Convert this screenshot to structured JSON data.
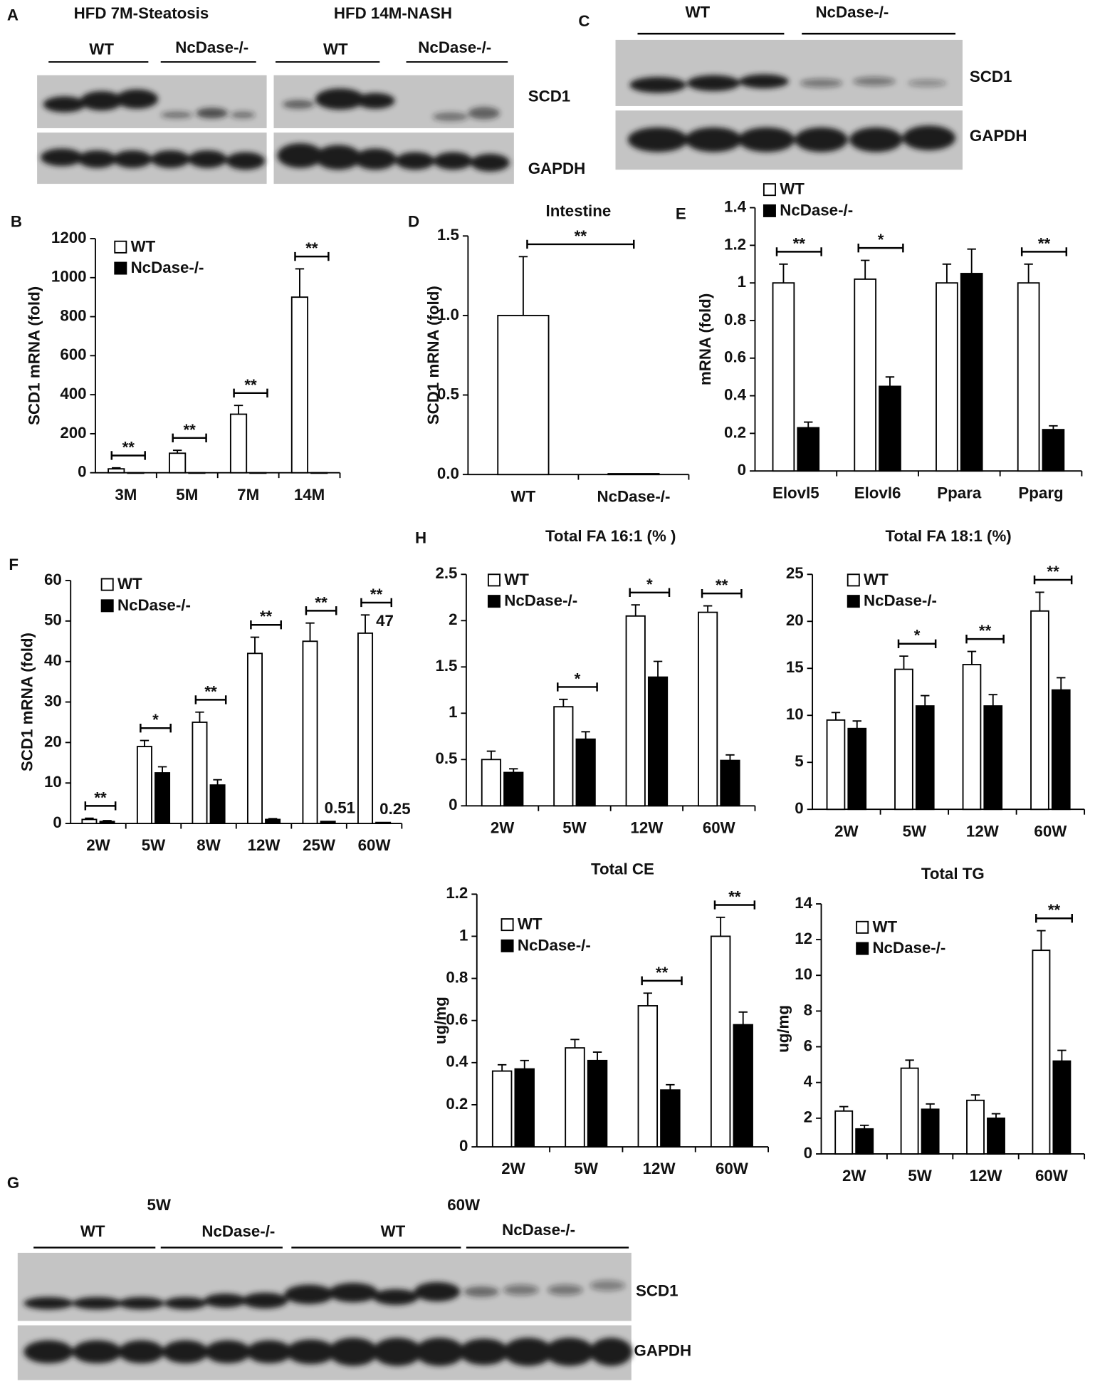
{
  "blot_panels": [
    {
      "panel": "A",
      "groups": [
        "HFD 7M-Steatosis",
        "HFD 14M-NASH"
      ],
      "lanes": [
        "WT",
        "NcDase-/-",
        "WT",
        "NcDase-/-"
      ],
      "bands": [
        "SCD1",
        "GAPDH"
      ]
    },
    {
      "panel": "C",
      "lanes": [
        "WT",
        "NcDase-/-"
      ],
      "bands": [
        "SCD1",
        "GAPDH"
      ]
    },
    {
      "panel": "G",
      "groups": [
        "5W",
        "60W"
      ],
      "lanes": [
        "WT",
        "NcDase-/-",
        "WT",
        "NcDase-/-"
      ],
      "bands": [
        "SCD1",
        "GAPDH"
      ]
    }
  ],
  "chart_data": [
    {
      "type": "bar",
      "panel": "B",
      "ylabel": "SCD1 mRNA (fold)",
      "categories": [
        "3M",
        "5M",
        "7M",
        "14M"
      ],
      "series": [
        {
          "name": "WT",
          "color": "#ffffff",
          "values": [
            20,
            100,
            300,
            900
          ],
          "errors": [
            5,
            15,
            45,
            145
          ]
        },
        {
          "name": "NcDase-/-",
          "color": "#000000",
          "values": [
            0,
            0,
            0,
            0
          ],
          "errors": [
            0,
            0,
            0,
            0
          ]
        }
      ],
      "significance": [
        "**",
        "**",
        "**",
        "**"
      ],
      "ylim": [
        0,
        1200
      ],
      "yticks": [
        0,
        200,
        400,
        600,
        800,
        1000,
        1200
      ],
      "legend": true
    },
    {
      "type": "bar",
      "panel": "D",
      "title": "Intestine",
      "ylabel": "SCD1 mRNA (fold)",
      "categories": [
        "WT",
        "NcDase-/-"
      ],
      "series": [
        {
          "color": "#ffffff",
          "values": [
            1.0,
            0.005
          ],
          "errors": [
            0.37,
            0
          ]
        }
      ],
      "significance": [
        "**",
        null
      ],
      "ylim": [
        0,
        1.5
      ],
      "yticks": [
        {
          "value": 0,
          "label": "0.0"
        },
        0.5,
        {
          "value": 1,
          "label": "1.0"
        },
        1.5
      ],
      "legend": false
    },
    {
      "type": "bar",
      "panel": "E",
      "ylabel": "mRNA (fold)",
      "categories": [
        "Elovl5",
        "Elovl6",
        "Ppara",
        "Pparg"
      ],
      "series": [
        {
          "name": "WT",
          "color": "#ffffff",
          "values": [
            1,
            1.02,
            1,
            1
          ],
          "errors": [
            0.1,
            0.1,
            0.1,
            0.1
          ]
        },
        {
          "name": "NcDase-/-",
          "color": "#000000",
          "values": [
            0.23,
            0.45,
            1.05,
            0.22
          ],
          "errors": [
            0.03,
            0.05,
            0.13,
            0.02
          ]
        }
      ],
      "significance": [
        "**",
        "*",
        null,
        "**"
      ],
      "ylim": [
        0,
        1.4
      ],
      "yticks": [
        0,
        0.2,
        0.4,
        0.6,
        0.8,
        1,
        1.2,
        1.4
      ],
      "legend": true
    },
    {
      "type": "bar",
      "panel": "F",
      "ylabel": "SCD1 mRNA (fold)",
      "categories": [
        "2W",
        "5W",
        "8W",
        "12W",
        "25W",
        "60W"
      ],
      "series": [
        {
          "name": "WT",
          "color": "#ffffff",
          "values": [
            1,
            19,
            25,
            42,
            45,
            47
          ],
          "errors": [
            0.3,
            1.5,
            2.5,
            4,
            4.5,
            4.5
          ],
          "value_labels": [
            null,
            null,
            null,
            null,
            null,
            "47"
          ]
        },
        {
          "name": "NcDase-/-",
          "color": "#000000",
          "values": [
            0.5,
            12.5,
            9.5,
            1,
            0.51,
            0.25
          ],
          "errors": [
            0.2,
            1.5,
            1.3,
            0.2,
            0,
            0
          ],
          "value_labels": [
            null,
            null,
            null,
            null,
            "0.51",
            "0.25"
          ]
        }
      ],
      "significance": [
        "**",
        "*",
        "**",
        "**",
        "**",
        "**"
      ],
      "ylim": [
        0,
        60
      ],
      "yticks": [
        0,
        10,
        20,
        30,
        40,
        50,
        60
      ],
      "legend": true
    },
    {
      "type": "bar",
      "panel": "H",
      "title": "Total FA 16:1 (% )",
      "categories": [
        "2W",
        "5W",
        "12W",
        "60W"
      ],
      "series": [
        {
          "name": "WT",
          "color": "#ffffff",
          "values": [
            0.5,
            1.07,
            2.05,
            2.09
          ],
          "errors": [
            0.09,
            0.08,
            0.12,
            0.07
          ]
        },
        {
          "name": "NcDase-/-",
          "color": "#000000",
          "values": [
            0.36,
            0.72,
            1.39,
            0.49
          ],
          "errors": [
            0.04,
            0.08,
            0.17,
            0.06
          ]
        }
      ],
      "significance": [
        null,
        "*",
        "*",
        "**"
      ],
      "ylim": [
        0,
        2.5
      ],
      "yticks": [
        0,
        0.5,
        1,
        1.5,
        2,
        2.5
      ],
      "legend": true
    },
    {
      "type": "bar",
      "title": "Total FA 18:1 (%)",
      "categories": [
        "2W",
        "5W",
        "12W",
        "60W"
      ],
      "series": [
        {
          "name": "WT",
          "color": "#ffffff",
          "values": [
            9.5,
            14.9,
            15.4,
            21.1
          ],
          "errors": [
            0.8,
            1.4,
            1.4,
            2
          ]
        },
        {
          "name": "NcDase-/-",
          "color": "#000000",
          "values": [
            8.6,
            11,
            11,
            12.7
          ],
          "errors": [
            0.8,
            1.1,
            1.2,
            1.3
          ]
        }
      ],
      "significance": [
        null,
        "*",
        "**",
        "**"
      ],
      "ylim": [
        0,
        25
      ],
      "yticks": [
        0,
        5,
        10,
        15,
        20,
        25
      ],
      "legend": true
    },
    {
      "type": "bar",
      "title": "Total CE",
      "ylabel": "ug/mg",
      "categories": [
        "2W",
        "5W",
        "12W",
        "60W"
      ],
      "series": [
        {
          "name": "WT",
          "color": "#ffffff",
          "values": [
            0.36,
            0.47,
            0.67,
            1.0
          ],
          "errors": [
            0.03,
            0.04,
            0.06,
            0.09
          ]
        },
        {
          "name": "NcDase-/-",
          "color": "#000000",
          "values": [
            0.37,
            0.41,
            0.27,
            0.58
          ],
          "errors": [
            0.04,
            0.04,
            0.025,
            0.06
          ]
        }
      ],
      "significance": [
        null,
        null,
        "**",
        "**"
      ],
      "ylim": [
        0,
        1.2
      ],
      "yticks": [
        0,
        0.2,
        0.4,
        0.6,
        0.8,
        1,
        1.2
      ],
      "legend": true
    },
    {
      "type": "bar",
      "title": "Total TG",
      "ylabel": "ug/mg",
      "categories": [
        "2W",
        "5W",
        "12W",
        "60W"
      ],
      "series": [
        {
          "name": "WT",
          "color": "#ffffff",
          "values": [
            2.4,
            4.8,
            3.0,
            11.4
          ],
          "errors": [
            0.25,
            0.45,
            0.3,
            1.1
          ]
        },
        {
          "name": "NcDase-/-",
          "color": "#000000",
          "values": [
            1.4,
            2.5,
            2.0,
            5.2
          ],
          "errors": [
            0.2,
            0.3,
            0.25,
            0.6
          ]
        }
      ],
      "significance": [
        null,
        null,
        null,
        "**"
      ],
      "ylim": [
        0,
        14
      ],
      "yticks": [
        0,
        2,
        4,
        6,
        8,
        10,
        12,
        14
      ],
      "legend": true
    }
  ]
}
